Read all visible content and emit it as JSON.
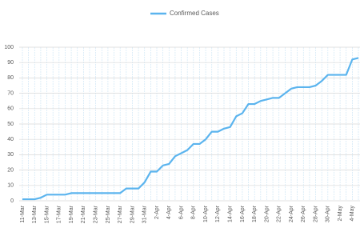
{
  "chart_data": {
    "type": "line",
    "categories": [
      "11-Mar",
      null,
      "13-Mar",
      null,
      "15-Mar",
      null,
      "17-Mar",
      null,
      "19-Mar",
      null,
      "21-Mar",
      null,
      "23-Mar",
      null,
      "25-Mar",
      null,
      "27-Mar",
      null,
      "29-Mar",
      null,
      "31-Mar",
      null,
      "2-Apr",
      null,
      "4-Apr",
      null,
      "6-Apr",
      null,
      "8-Apr",
      null,
      "10-Apr",
      null,
      "12-Apr",
      null,
      "14-Apr",
      null,
      "16-Apr",
      null,
      "18-Apr",
      null,
      "20-Apr",
      null,
      "22-Apr",
      null,
      "24-Apr",
      null,
      "26-Apr",
      null,
      "28-Apr",
      null,
      "30-Apr",
      null,
      "2-May",
      null,
      "4-May",
      null
    ],
    "series": [
      {
        "name": "Confirmed Cases",
        "color": "#5bb4ee",
        "values": [
          1,
          1,
          1,
          2,
          4,
          4,
          4,
          4,
          5,
          5,
          5,
          5,
          5,
          5,
          5,
          5,
          5,
          8,
          8,
          8,
          12,
          19,
          19,
          23,
          24,
          29,
          31,
          33,
          37,
          37,
          40,
          45,
          45,
          47,
          48,
          55,
          57,
          63,
          63,
          65,
          66,
          67,
          67,
          70,
          73,
          74,
          74,
          74,
          75,
          78,
          82,
          82,
          82,
          82,
          92,
          93
        ]
      }
    ],
    "ylim": [
      0,
      100
    ],
    "yticks": [
      0,
      10,
      20,
      30,
      40,
      50,
      60,
      70,
      80,
      90,
      100
    ],
    "grid": true,
    "legend": "top"
  }
}
